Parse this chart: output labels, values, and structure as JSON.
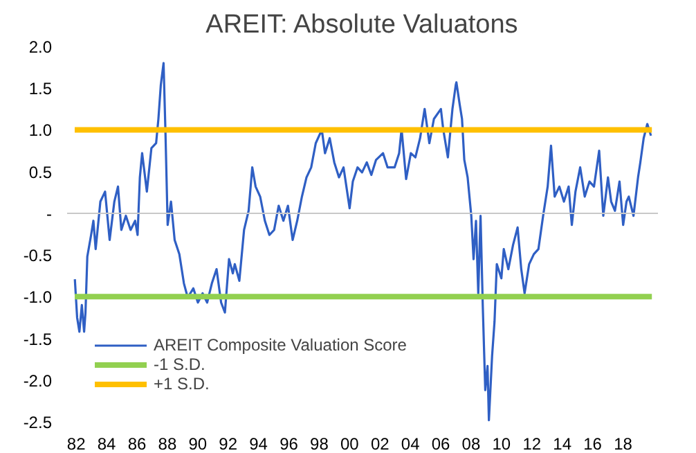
{
  "chart_data": {
    "type": "line",
    "title": "AREIT: Absolute Valuatons",
    "xlim": [
      1981.4,
      2020.3
    ],
    "ylim": [
      -2.5,
      2.0
    ],
    "xticks": [
      {
        "value": 1982,
        "label": "82"
      },
      {
        "value": 1984,
        "label": "84"
      },
      {
        "value": 1986,
        "label": "86"
      },
      {
        "value": 1988,
        "label": "88"
      },
      {
        "value": 1990,
        "label": "90"
      },
      {
        "value": 1992,
        "label": "92"
      },
      {
        "value": 1994,
        "label": "94"
      },
      {
        "value": 1996,
        "label": "96"
      },
      {
        "value": 1998,
        "label": "98"
      },
      {
        "value": 2000,
        "label": "00"
      },
      {
        "value": 2002,
        "label": "02"
      },
      {
        "value": 2004,
        "label": "04"
      },
      {
        "value": 2006,
        "label": "06"
      },
      {
        "value": 2008,
        "label": "08"
      },
      {
        "value": 2010,
        "label": "10"
      },
      {
        "value": 2012,
        "label": "12"
      },
      {
        "value": 2014,
        "label": "14"
      },
      {
        "value": 2016,
        "label": "16"
      },
      {
        "value": 2018,
        "label": "18"
      }
    ],
    "yticks": [
      {
        "value": -2.5,
        "label": "-2.5"
      },
      {
        "value": -2.0,
        "label": "-2.0"
      },
      {
        "value": -1.5,
        "label": "-1.5"
      },
      {
        "value": -1.0,
        "label": "-1.0"
      },
      {
        "value": -0.5,
        "label": "-0.5"
      },
      {
        "value": 0,
        "label": "-"
      },
      {
        "value": 0.5,
        "label": "0.5"
      },
      {
        "value": 1.0,
        "label": "1.0"
      },
      {
        "value": 1.5,
        "label": "1.5"
      },
      {
        "value": 2.0,
        "label": "2.0"
      }
    ],
    "grid": false,
    "legend": "bottom left",
    "marker": "none",
    "line_style": "solid",
    "ref_lines": [
      {
        "axis": "y",
        "value": 0,
        "color": "#c8c8c8"
      }
    ],
    "series": [
      {
        "name": "AREIT Composite Valuation Score",
        "color": "#2f5fc4",
        "x": [
          1981.91,
          1982.06,
          1982.21,
          1982.37,
          1982.52,
          1982.61,
          1982.73,
          1982.98,
          1983.13,
          1983.28,
          1983.59,
          1983.9,
          1984.2,
          1984.51,
          1984.75,
          1984.97,
          1985.27,
          1985.58,
          1985.88,
          1986.04,
          1986.19,
          1986.34,
          1986.65,
          1986.95,
          1987.26,
          1987.41,
          1987.57,
          1987.75,
          1987.87,
          1988.02,
          1988.24,
          1988.48,
          1988.79,
          1989.09,
          1989.34,
          1989.71,
          1990.01,
          1990.32,
          1990.62,
          1990.93,
          1991.24,
          1991.54,
          1991.79,
          1992.06,
          1992.31,
          1992.44,
          1992.74,
          1993.05,
          1993.35,
          1993.59,
          1993.81,
          1994.11,
          1994.42,
          1994.72,
          1995.03,
          1995.33,
          1995.64,
          1995.94,
          1996.25,
          1996.55,
          1996.86,
          1997.16,
          1997.47,
          1997.77,
          1998.17,
          1998.38,
          1998.69,
          1998.99,
          1999.3,
          1999.6,
          2000.0,
          2000.21,
          2000.52,
          2000.82,
          2001.13,
          2001.43,
          2001.74,
          2002.2,
          2002.5,
          2002.96,
          2003.26,
          2003.42,
          2003.72,
          2004.03,
          2004.33,
          2004.64,
          2004.94,
          2005.25,
          2005.55,
          2006.01,
          2006.16,
          2006.47,
          2006.77,
          2006.99,
          2007.03,
          2007.25,
          2007.4,
          2007.55,
          2007.77,
          2008.01,
          2008.16,
          2008.32,
          2008.47,
          2008.62,
          2008.77,
          2008.93,
          2009.08,
          2009.17,
          2009.38,
          2009.54,
          2009.69,
          2009.99,
          2010.15,
          2010.45,
          2010.76,
          2011.06,
          2011.3,
          2011.52,
          2011.82,
          2012.13,
          2012.43,
          2012.74,
          2013.04,
          2013.26,
          2013.5,
          2013.81,
          2014.11,
          2014.42,
          2014.63,
          2014.87,
          2015.18,
          2015.48,
          2015.79,
          2016.09,
          2016.43,
          2016.7,
          2017.01,
          2017.22,
          2017.47,
          2017.77,
          2018.01,
          2018.23,
          2018.38,
          2018.69,
          2018.84,
          2018.99,
          2019.14,
          2019.36,
          2019.6,
          2019.84
        ],
        "values": [
          -0.79,
          -1.25,
          -1.42,
          -1.1,
          -1.42,
          -1.19,
          -0.52,
          -0.26,
          -0.09,
          -0.43,
          0.14,
          0.26,
          -0.32,
          0.14,
          0.32,
          -0.2,
          -0.03,
          -0.2,
          -0.09,
          -0.26,
          0.43,
          0.72,
          0.26,
          0.78,
          0.84,
          1.13,
          1.54,
          1.8,
          1.01,
          -0.14,
          0.14,
          -0.32,
          -0.49,
          -0.84,
          -1.01,
          -0.9,
          -1.07,
          -0.96,
          -1.07,
          -0.84,
          -0.67,
          -1.07,
          -1.19,
          -0.55,
          -0.72,
          -0.61,
          -0.81,
          -0.2,
          0.03,
          0.55,
          0.32,
          0.2,
          -0.09,
          -0.26,
          -0.2,
          0.09,
          -0.09,
          0.09,
          -0.32,
          -0.09,
          0.2,
          0.43,
          0.55,
          0.84,
          1.0,
          0.72,
          0.9,
          0.61,
          0.43,
          0.55,
          0.06,
          0.38,
          0.55,
          0.49,
          0.61,
          0.46,
          0.64,
          0.72,
          0.55,
          0.55,
          0.72,
          1.01,
          0.41,
          0.72,
          0.67,
          0.9,
          1.25,
          0.84,
          1.13,
          1.25,
          1.01,
          0.67,
          1.25,
          1.54,
          1.57,
          1.3,
          1.13,
          0.64,
          0.43,
          -0.03,
          -0.55,
          -0.09,
          -0.96,
          -0.03,
          -1.13,
          -2.12,
          -1.83,
          -2.48,
          -1.71,
          -1.3,
          -0.61,
          -0.78,
          -0.43,
          -0.67,
          -0.38,
          -0.17,
          -0.67,
          -0.96,
          -0.61,
          -0.49,
          -0.43,
          -0.03,
          0.32,
          0.81,
          0.2,
          0.32,
          0.14,
          0.32,
          -0.14,
          0.26,
          0.55,
          0.2,
          0.38,
          0.32,
          0.75,
          -0.03,
          0.43,
          0.14,
          0.03,
          0.38,
          -0.14,
          0.14,
          0.2,
          -0.03,
          0.2,
          0.43,
          0.61,
          0.9,
          1.07,
          0.93
        ]
      },
      {
        "name": "-1 S.D.",
        "color": "#92d050",
        "x": [
          1981.9,
          2019.9
        ],
        "values": [
          -1.0,
          -1.0
        ]
      },
      {
        "name": "+1 S.D.",
        "color": "#ffc000",
        "x": [
          1981.9,
          2019.9
        ],
        "values": [
          1.0,
          1.0
        ]
      }
    ]
  }
}
